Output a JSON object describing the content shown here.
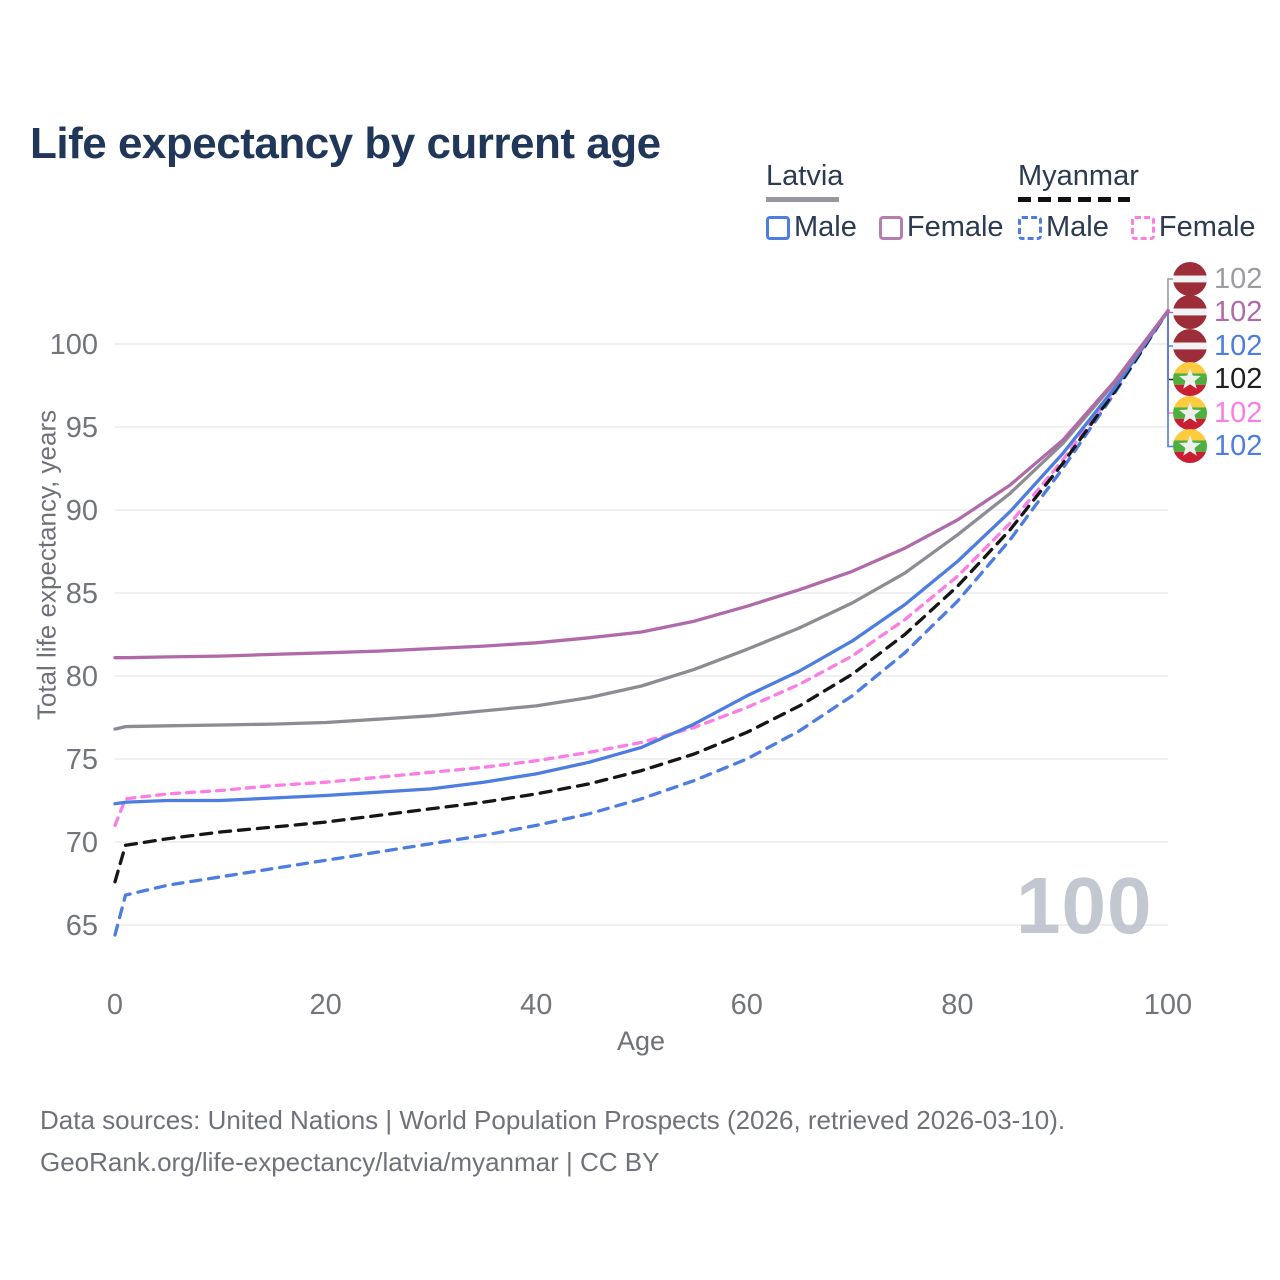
{
  "title": "Life expectancy by current age",
  "legend": {
    "latvia_label": "Latvia",
    "myanmar_label": "Myanmar",
    "latvia_male": "Male",
    "latvia_female": "Female",
    "myanmar_male": "Male",
    "myanmar_female": "Female"
  },
  "watermark": "100",
  "footer": {
    "line1": "Data sources: United Nations | World Population Prospects (2026, retrieved 2026-03-10).",
    "line2": "GeoRank.org/life-expectancy/latvia/myanmar | CC BY"
  },
  "annotations": [
    {
      "flag": "latvia",
      "label": "102",
      "color": "#9b9ba1"
    },
    {
      "flag": "latvia",
      "label": "102",
      "color": "#b06aa9"
    },
    {
      "flag": "latvia",
      "label": "102",
      "color": "#4d7de0"
    },
    {
      "flag": "myanmar",
      "label": "102",
      "color": "#1f1f1f"
    },
    {
      "flag": "myanmar",
      "label": "102",
      "color": "#fb7ee5"
    },
    {
      "flag": "myanmar",
      "label": "102",
      "color": "#4d7de0"
    }
  ],
  "chart_data": {
    "type": "line",
    "title": "Life expectancy by current age",
    "xlabel": "Age",
    "ylabel": "Total life expectancy, years",
    "xlim": [
      0,
      100
    ],
    "ylim": [
      63,
      103
    ],
    "x_ticks": [
      0,
      20,
      40,
      60,
      80,
      100
    ],
    "y_ticks": [
      65,
      70,
      75,
      80,
      85,
      90,
      95,
      100
    ],
    "grid": "horizontal",
    "legend_position": "top-right",
    "x": [
      0,
      1,
      5,
      10,
      15,
      20,
      25,
      30,
      35,
      40,
      45,
      50,
      55,
      60,
      65,
      70,
      75,
      80,
      85,
      90,
      95,
      100
    ],
    "series": [
      {
        "id": "latvia-total",
        "name": "Latvia",
        "color": "#8c8c92",
        "dash": null,
        "values": [
          76.8,
          76.95,
          77.0,
          77.05,
          77.1,
          77.2,
          77.4,
          77.6,
          77.9,
          78.2,
          78.7,
          79.4,
          80.4,
          81.6,
          82.9,
          84.4,
          86.2,
          88.5,
          91.0,
          94.0,
          97.7,
          102
        ]
      },
      {
        "id": "latvia-female",
        "name": "Latvia Female",
        "color": "#b06aa9",
        "dash": null,
        "values": [
          81.1,
          81.1,
          81.15,
          81.2,
          81.3,
          81.4,
          81.5,
          81.65,
          81.8,
          82.0,
          82.3,
          82.65,
          83.3,
          84.2,
          85.2,
          86.3,
          87.7,
          89.4,
          91.5,
          94.2,
          97.8,
          102
        ]
      },
      {
        "id": "latvia-male",
        "name": "Latvia Male",
        "color": "#4d7de0",
        "dash": null,
        "values": [
          72.3,
          72.4,
          72.5,
          72.5,
          72.65,
          72.8,
          73.0,
          73.2,
          73.6,
          74.1,
          74.8,
          75.7,
          77.1,
          78.8,
          80.3,
          82.1,
          84.3,
          86.9,
          89.9,
          93.4,
          97.4,
          102
        ]
      },
      {
        "id": "myanmar-total",
        "name": "Myanmar",
        "color": "#161616",
        "dash": "11 8",
        "values": [
          67.6,
          69.8,
          70.2,
          70.6,
          70.9,
          71.2,
          71.6,
          72.0,
          72.4,
          72.9,
          73.5,
          74.3,
          75.3,
          76.6,
          78.2,
          80.1,
          82.5,
          85.4,
          88.8,
          92.8,
          97.2,
          102
        ]
      },
      {
        "id": "myanmar-female",
        "name": "Myanmar Female",
        "color": "#fb7ee5",
        "dash": "8 7",
        "values": [
          71.0,
          72.6,
          72.9,
          73.1,
          73.4,
          73.6,
          73.9,
          74.2,
          74.5,
          74.9,
          75.4,
          76.0,
          76.9,
          78.1,
          79.5,
          81.2,
          83.4,
          86.0,
          89.2,
          93.0,
          97.3,
          102
        ]
      },
      {
        "id": "myanmar-male",
        "name": "Myanmar Male",
        "color": "#4d7de0",
        "dash": "10 8",
        "values": [
          64.4,
          66.8,
          67.4,
          67.9,
          68.4,
          68.9,
          69.4,
          69.9,
          70.4,
          71.0,
          71.7,
          72.6,
          73.7,
          75.0,
          76.7,
          78.8,
          81.4,
          84.5,
          88.2,
          92.5,
          97.1,
          102
        ]
      }
    ],
    "end_labels": [
      "102",
      "102",
      "102",
      "102",
      "102",
      "102"
    ]
  }
}
